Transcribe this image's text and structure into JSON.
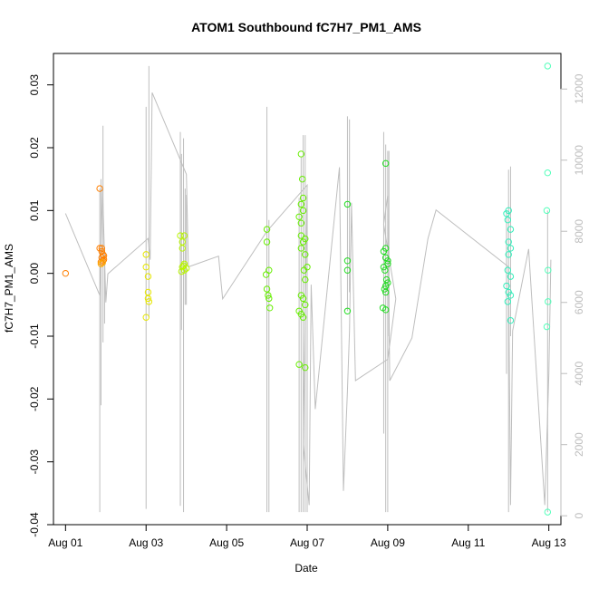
{
  "chart_data": {
    "type": "scatter",
    "title": "ATOM1 Southbound fC7H7_PM1_AMS",
    "xlabel": "Date",
    "ylabel": "fC7H7_PM1_AMS",
    "x_unit": "days since Aug 01",
    "xlim": [
      -0.3,
      12.3
    ],
    "ylim": [
      -0.04,
      0.035
    ],
    "y2lim": [
      -250,
      13000
    ],
    "x_ticks": [
      {
        "value": 0,
        "label": "Aug 01"
      },
      {
        "value": 2,
        "label": "Aug 03"
      },
      {
        "value": 4,
        "label": "Aug 05"
      },
      {
        "value": 6,
        "label": "Aug 07"
      },
      {
        "value": 8,
        "label": "Aug 09"
      },
      {
        "value": 10,
        "label": "Aug 11"
      },
      {
        "value": 12,
        "label": "Aug 13"
      }
    ],
    "y_ticks": [
      {
        "value": 0.03,
        "label": "0.03"
      },
      {
        "value": 0.02,
        "label": "0.02"
      },
      {
        "value": 0.01,
        "label": "0.01"
      },
      {
        "value": 0.0,
        "label": "0.00"
      },
      {
        "value": -0.01,
        "label": "-0.01"
      },
      {
        "value": -0.02,
        "label": "-0.02"
      },
      {
        "value": -0.03,
        "label": "-0.03"
      },
      {
        "value": -0.04,
        "label": "-0.04"
      }
    ],
    "y2_ticks": [
      {
        "value": 0,
        "label": "0"
      },
      {
        "value": 2000,
        "label": "2000"
      },
      {
        "value": 4000,
        "label": "4000"
      },
      {
        "value": 6000,
        "label": "6000"
      },
      {
        "value": 8000,
        "label": "8000"
      },
      {
        "value": 10000,
        "label": "10000"
      },
      {
        "value": 12000,
        "label": "12000"
      }
    ],
    "line_color": "#bebebe",
    "secondary_line": [
      [
        0.0,
        8500
      ],
      [
        0.85,
        6200
      ],
      [
        0.92,
        9200
      ],
      [
        1.0,
        6000
      ],
      [
        1.05,
        6800
      ],
      [
        2.05,
        7800
      ],
      [
        2.1,
        7200
      ],
      [
        2.15,
        11900
      ],
      [
        3.0,
        9600
      ],
      [
        3.05,
        7000
      ],
      [
        3.8,
        7300
      ],
      [
        3.9,
        6100
      ],
      [
        5.0,
        8000
      ],
      [
        6.0,
        9300
      ],
      [
        5.9,
        2000
      ],
      [
        6.05,
        300
      ],
      [
        6.1,
        6500
      ],
      [
        6.2,
        3000
      ],
      [
        6.8,
        9800
      ],
      [
        6.9,
        700
      ],
      [
        7.0,
        3500
      ],
      [
        7.05,
        5200
      ],
      [
        7.1,
        8800
      ],
      [
        7.2,
        3800
      ],
      [
        8.0,
        4400
      ],
      [
        8.2,
        6100
      ],
      [
        7.9,
        8200
      ],
      [
        8.0,
        9000
      ],
      [
        8.05,
        3800
      ],
      [
        8.6,
        5000
      ],
      [
        9.0,
        7800
      ],
      [
        9.2,
        8600
      ],
      [
        11.0,
        7000
      ],
      [
        11.05,
        300
      ],
      [
        11.1,
        5200
      ],
      [
        11.5,
        7500
      ],
      [
        11.9,
        300
      ],
      [
        12.0,
        4000
      ],
      [
        12.05,
        7200
      ]
    ],
    "series": [
      {
        "color": "#ff7f00",
        "points": [
          [
            0.0,
            0.0
          ],
          [
            0.85,
            0.0135
          ],
          [
            0.85,
            0.004
          ],
          [
            0.9,
            0.004
          ],
          [
            0.9,
            0.0035
          ],
          [
            0.93,
            0.003
          ],
          [
            0.95,
            0.0028
          ],
          [
            0.93,
            0.002
          ],
          [
            0.95,
            0.0022
          ],
          [
            0.88,
            0.0018
          ],
          [
            0.9,
            0.0025
          ]
        ]
      },
      {
        "color": "#ffaa00",
        "points": [
          [
            0.88,
            0.0015
          ],
          [
            0.92,
            0.0017
          ]
        ]
      },
      {
        "color": "#e6e600",
        "points": [
          [
            2.0,
            0.003
          ],
          [
            2.0,
            0.001
          ],
          [
            2.05,
            -0.0005
          ],
          [
            2.05,
            -0.003
          ],
          [
            2.05,
            -0.004
          ],
          [
            2.07,
            -0.0045
          ],
          [
            2.0,
            -0.007
          ]
        ]
      },
      {
        "color": "#b8f500",
        "points": [
          [
            2.85,
            0.006
          ],
          [
            2.9,
            0.005
          ],
          [
            2.95,
            0.006
          ],
          [
            2.9,
            0.004
          ],
          [
            2.95,
            0.0015
          ],
          [
            2.9,
            0.001
          ],
          [
            2.95,
            0.0005
          ],
          [
            3.0,
            0.0008
          ],
          [
            2.88,
            0.0003
          ],
          [
            2.93,
            0.0012
          ]
        ]
      },
      {
        "color": "#66ee00",
        "points": [
          [
            5.0,
            0.007
          ],
          [
            5.0,
            0.005
          ],
          [
            5.05,
            0.0005
          ],
          [
            4.98,
            -0.0002
          ],
          [
            5.0,
            -0.0025
          ],
          [
            5.05,
            -0.004
          ],
          [
            5.03,
            -0.0035
          ],
          [
            5.07,
            -0.0055
          ],
          [
            5.85,
            0.019
          ],
          [
            5.88,
            0.015
          ],
          [
            5.9,
            0.012
          ],
          [
            5.85,
            0.011
          ],
          [
            5.9,
            0.01
          ],
          [
            5.8,
            0.009
          ],
          [
            5.85,
            0.006
          ],
          [
            5.95,
            0.0055
          ],
          [
            5.9,
            0.005
          ],
          [
            5.85,
            0.004
          ],
          [
            5.95,
            0.003
          ],
          [
            6.0,
            0.001
          ],
          [
            5.95,
            -0.001
          ],
          [
            5.85,
            -0.0035
          ],
          [
            5.8,
            -0.006
          ],
          [
            5.85,
            -0.0065
          ],
          [
            5.9,
            -0.007
          ],
          [
            5.95,
            -0.005
          ],
          [
            5.8,
            -0.0145
          ],
          [
            5.95,
            -0.015
          ],
          [
            5.85,
            0.008
          ],
          [
            5.9,
            -0.004
          ],
          [
            5.92,
            0.0005
          ]
        ]
      },
      {
        "color": "#22dd22",
        "points": [
          [
            7.0,
            0.011
          ],
          [
            7.0,
            0.002
          ],
          [
            7.0,
            0.0005
          ],
          [
            7.0,
            -0.006
          ],
          [
            7.95,
            0.0175
          ],
          [
            7.95,
            0.004
          ],
          [
            7.9,
            0.0035
          ],
          [
            7.95,
            0.0025
          ],
          [
            8.0,
            0.0015
          ],
          [
            7.9,
            0.001
          ],
          [
            7.93,
            0.0005
          ],
          [
            7.97,
            -0.001
          ],
          [
            8.0,
            -0.0015
          ],
          [
            7.95,
            -0.002
          ],
          [
            7.92,
            -0.0025
          ],
          [
            7.95,
            -0.003
          ],
          [
            7.88,
            -0.0055
          ],
          [
            7.95,
            -0.0058
          ],
          [
            8.0,
            0.002
          ]
        ]
      },
      {
        "color": "#33eebb",
        "points": [
          [
            10.95,
            0.0095
          ],
          [
            11.0,
            0.01
          ],
          [
            10.98,
            0.0085
          ],
          [
            11.05,
            0.007
          ],
          [
            11.0,
            0.005
          ],
          [
            11.05,
            0.004
          ],
          [
            11.0,
            0.003
          ],
          [
            10.98,
            0.0005
          ],
          [
            11.05,
            -0.0005
          ],
          [
            10.95,
            -0.002
          ],
          [
            11.0,
            -0.003
          ],
          [
            11.05,
            -0.0035
          ],
          [
            10.98,
            -0.0045
          ],
          [
            11.05,
            -0.0075
          ]
        ]
      },
      {
        "color": "#55ffbb",
        "points": [
          [
            11.97,
            0.033
          ],
          [
            11.97,
            0.016
          ],
          [
            11.95,
            0.01
          ],
          [
            11.98,
            0.0005
          ],
          [
            11.98,
            -0.0045
          ],
          [
            11.95,
            -0.0085
          ],
          [
            11.97,
            -0.038
          ]
        ]
      }
    ],
    "vertical_lines": [
      {
        "x": 0.85,
        "y1": -0.038,
        "y2": 0.0135
      },
      {
        "x": 0.88,
        "y1": -0.021,
        "y2": 0.015
      },
      {
        "x": 0.93,
        "y1": -0.011,
        "y2": 0.0235
      },
      {
        "x": 0.97,
        "y1": -0.008,
        "y2": 0.004
      },
      {
        "x": 2.0,
        "y1": -0.0375,
        "y2": 0.0265
      },
      {
        "x": 2.07,
        "y1": -0.007,
        "y2": 0.033
      },
      {
        "x": 2.85,
        "y1": -0.037,
        "y2": 0.0225
      },
      {
        "x": 2.88,
        "y1": -0.009,
        "y2": 0.019
      },
      {
        "x": 2.93,
        "y1": -0.038,
        "y2": 0.0215
      },
      {
        "x": 2.97,
        "y1": -0.005,
        "y2": 0.0135
      },
      {
        "x": 3.0,
        "y1": -0.005,
        "y2": 0.0125
      },
      {
        "x": 5.0,
        "y1": -0.038,
        "y2": 0.0265
      },
      {
        "x": 5.05,
        "y1": -0.038,
        "y2": 0.0085
      },
      {
        "x": 5.8,
        "y1": -0.038,
        "y2": 0.012
      },
      {
        "x": 5.85,
        "y1": -0.038,
        "y2": 0.0185
      },
      {
        "x": 5.9,
        "y1": -0.038,
        "y2": 0.022
      },
      {
        "x": 5.95,
        "y1": -0.038,
        "y2": 0.022
      },
      {
        "x": 6.0,
        "y1": -0.038,
        "y2": 0.0125
      },
      {
        "x": 7.0,
        "y1": -0.006,
        "y2": 0.025
      },
      {
        "x": 7.05,
        "y1": -0.003,
        "y2": 0.0245
      },
      {
        "x": 7.9,
        "y1": -0.0255,
        "y2": 0.0225
      },
      {
        "x": 7.95,
        "y1": -0.038,
        "y2": 0.0205
      },
      {
        "x": 8.0,
        "y1": -0.038,
        "y2": 0.0195
      },
      {
        "x": 8.03,
        "y1": -0.01,
        "y2": 0.0195
      },
      {
        "x": 10.95,
        "y1": -0.016,
        "y2": 0.01
      },
      {
        "x": 11.0,
        "y1": -0.038,
        "y2": 0.0165
      },
      {
        "x": 11.05,
        "y1": -0.01,
        "y2": 0.017
      },
      {
        "x": 11.97,
        "y1": -0.038,
        "y2": 0.01
      }
    ]
  }
}
